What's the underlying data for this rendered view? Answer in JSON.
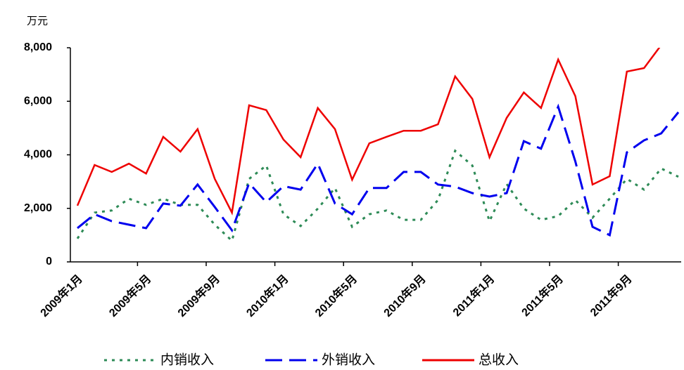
{
  "chart_data": {
    "type": "line",
    "y_label": "万元",
    "categories": [
      "2009年1月",
      null,
      null,
      null,
      "2009年5月",
      null,
      null,
      null,
      "2009年9月",
      null,
      null,
      null,
      "2010年1月",
      null,
      null,
      null,
      "2010年5月",
      null,
      null,
      null,
      "2010年9月",
      null,
      null,
      null,
      "2011年1月",
      null,
      null,
      null,
      "2011年5月",
      null,
      null,
      null,
      "2011年9月",
      null,
      null,
      null
    ],
    "series": [
      {
        "name": "内销收入",
        "color": "#2e8b57",
        "style": "dotted",
        "values": [
          870,
          1840,
          1920,
          2360,
          2130,
          2360,
          2130,
          2130,
          1390,
          790,
          3100,
          3600,
          1780,
          1340,
          1990,
          2760,
          1310,
          1780,
          1920,
          1570,
          1570,
          2310,
          4150,
          3600,
          1520,
          2910,
          1990,
          1570,
          1710,
          2310,
          1650,
          2360,
          3100,
          2700,
          3490,
          3180
        ]
      },
      {
        "name": "外销收入",
        "color": "#0000ee",
        "style": "dashed",
        "values": [
          1260,
          1780,
          1520,
          1390,
          1260,
          2180,
          2100,
          2890,
          2050,
          1180,
          2940,
          2230,
          2830,
          2700,
          3670,
          2180,
          1780,
          2760,
          2760,
          3360,
          3360,
          2890,
          2810,
          2570,
          2440,
          2570,
          4510,
          4230,
          5800,
          3750,
          1310,
          1000,
          4090,
          4540,
          4800,
          5590
        ]
      },
      {
        "name": "总收入",
        "color": "#ee0000",
        "style": "solid",
        "values": [
          2100,
          3620,
          3360,
          3670,
          3300,
          4670,
          4120,
          4960,
          3100,
          1840,
          5850,
          5670,
          4570,
          3910,
          5750,
          4960,
          3070,
          4430,
          4670,
          4900,
          4900,
          5140,
          6930,
          6090,
          3910,
          5380,
          6330,
          5750,
          7560,
          6190,
          2890,
          3200,
          7110,
          7240,
          8100,
          8500
        ]
      }
    ],
    "ylim": [
      0,
      8000
    ],
    "yticks": [
      0,
      {
        "value": 2000,
        "label": "2,000"
      },
      {
        "value": 4000,
        "label": "4,000"
      },
      {
        "value": 6000,
        "label": "6,000"
      },
      {
        "value": 8000,
        "label": "8,000"
      }
    ],
    "legend": "bottom"
  }
}
